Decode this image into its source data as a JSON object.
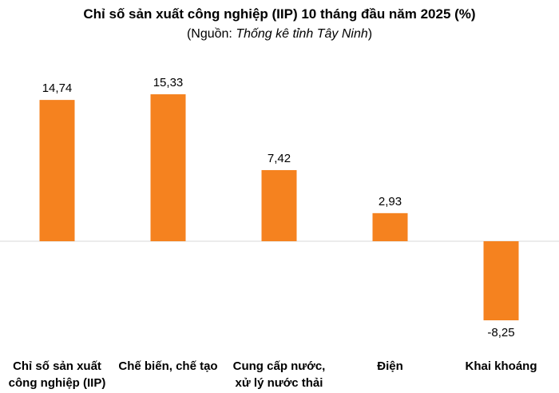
{
  "chart_data": {
    "type": "bar",
    "title": "Chỉ số sản xuất công nghiệp (IIP) 10 tháng đầu năm 2025 (%)",
    "subtitle_prefix": "(Nguồn: ",
    "subtitle_source": "Thống kê tỉnh Tây Ninh",
    "subtitle_suffix": ")",
    "categories": [
      [
        "Chỉ số sản xuất",
        "công nghiệp (IIP)"
      ],
      [
        "Chế biến, chế tạo"
      ],
      [
        "Cung cấp nước,",
        "xử lý nước thải"
      ],
      [
        "Điện"
      ],
      [
        "Khai khoáng"
      ]
    ],
    "values": [
      14.74,
      15.33,
      7.42,
      2.93,
      -8.25
    ],
    "value_labels": [
      "14,74",
      "15,33",
      "7,42",
      "2,93",
      "-8,25"
    ],
    "bar_color": "#F5821F",
    "axis_color": "#D9D9D9",
    "grid": false,
    "legend": "none"
  }
}
